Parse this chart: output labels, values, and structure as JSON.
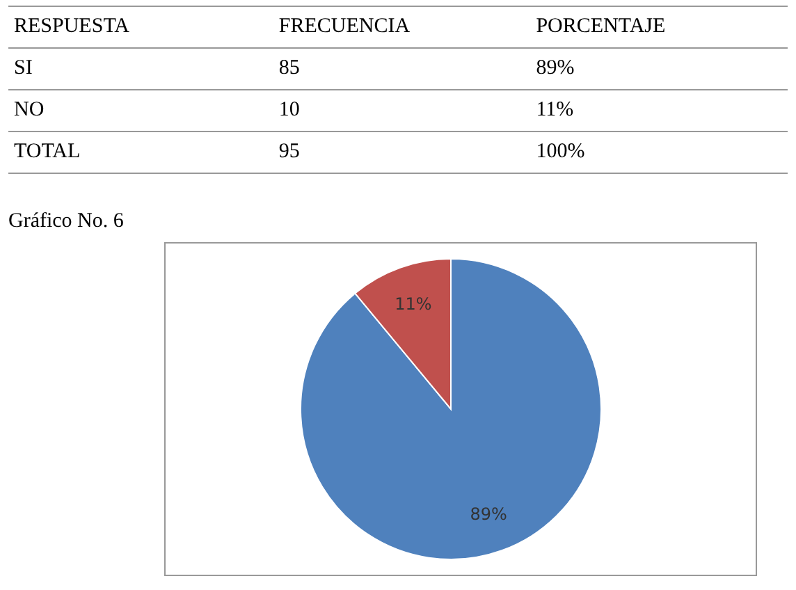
{
  "chart_data": {
    "type": "pie",
    "title": "Gráfico No. 6",
    "categories": [
      null,
      null
    ],
    "values": [
      89,
      11
    ],
    "colors": [
      "#4f81bd",
      "#c0504d"
    ],
    "value_labels": [
      "89%",
      "11%"
    ],
    "annotations": [
      "RESPUESTA",
      "FRECUENCIA",
      "PORCENTAJE",
      "SI",
      "85",
      "89%",
      "NO",
      "10",
      "11%",
      "TOTAL",
      "95",
      "100%"
    ],
    "legend": false
  }
}
